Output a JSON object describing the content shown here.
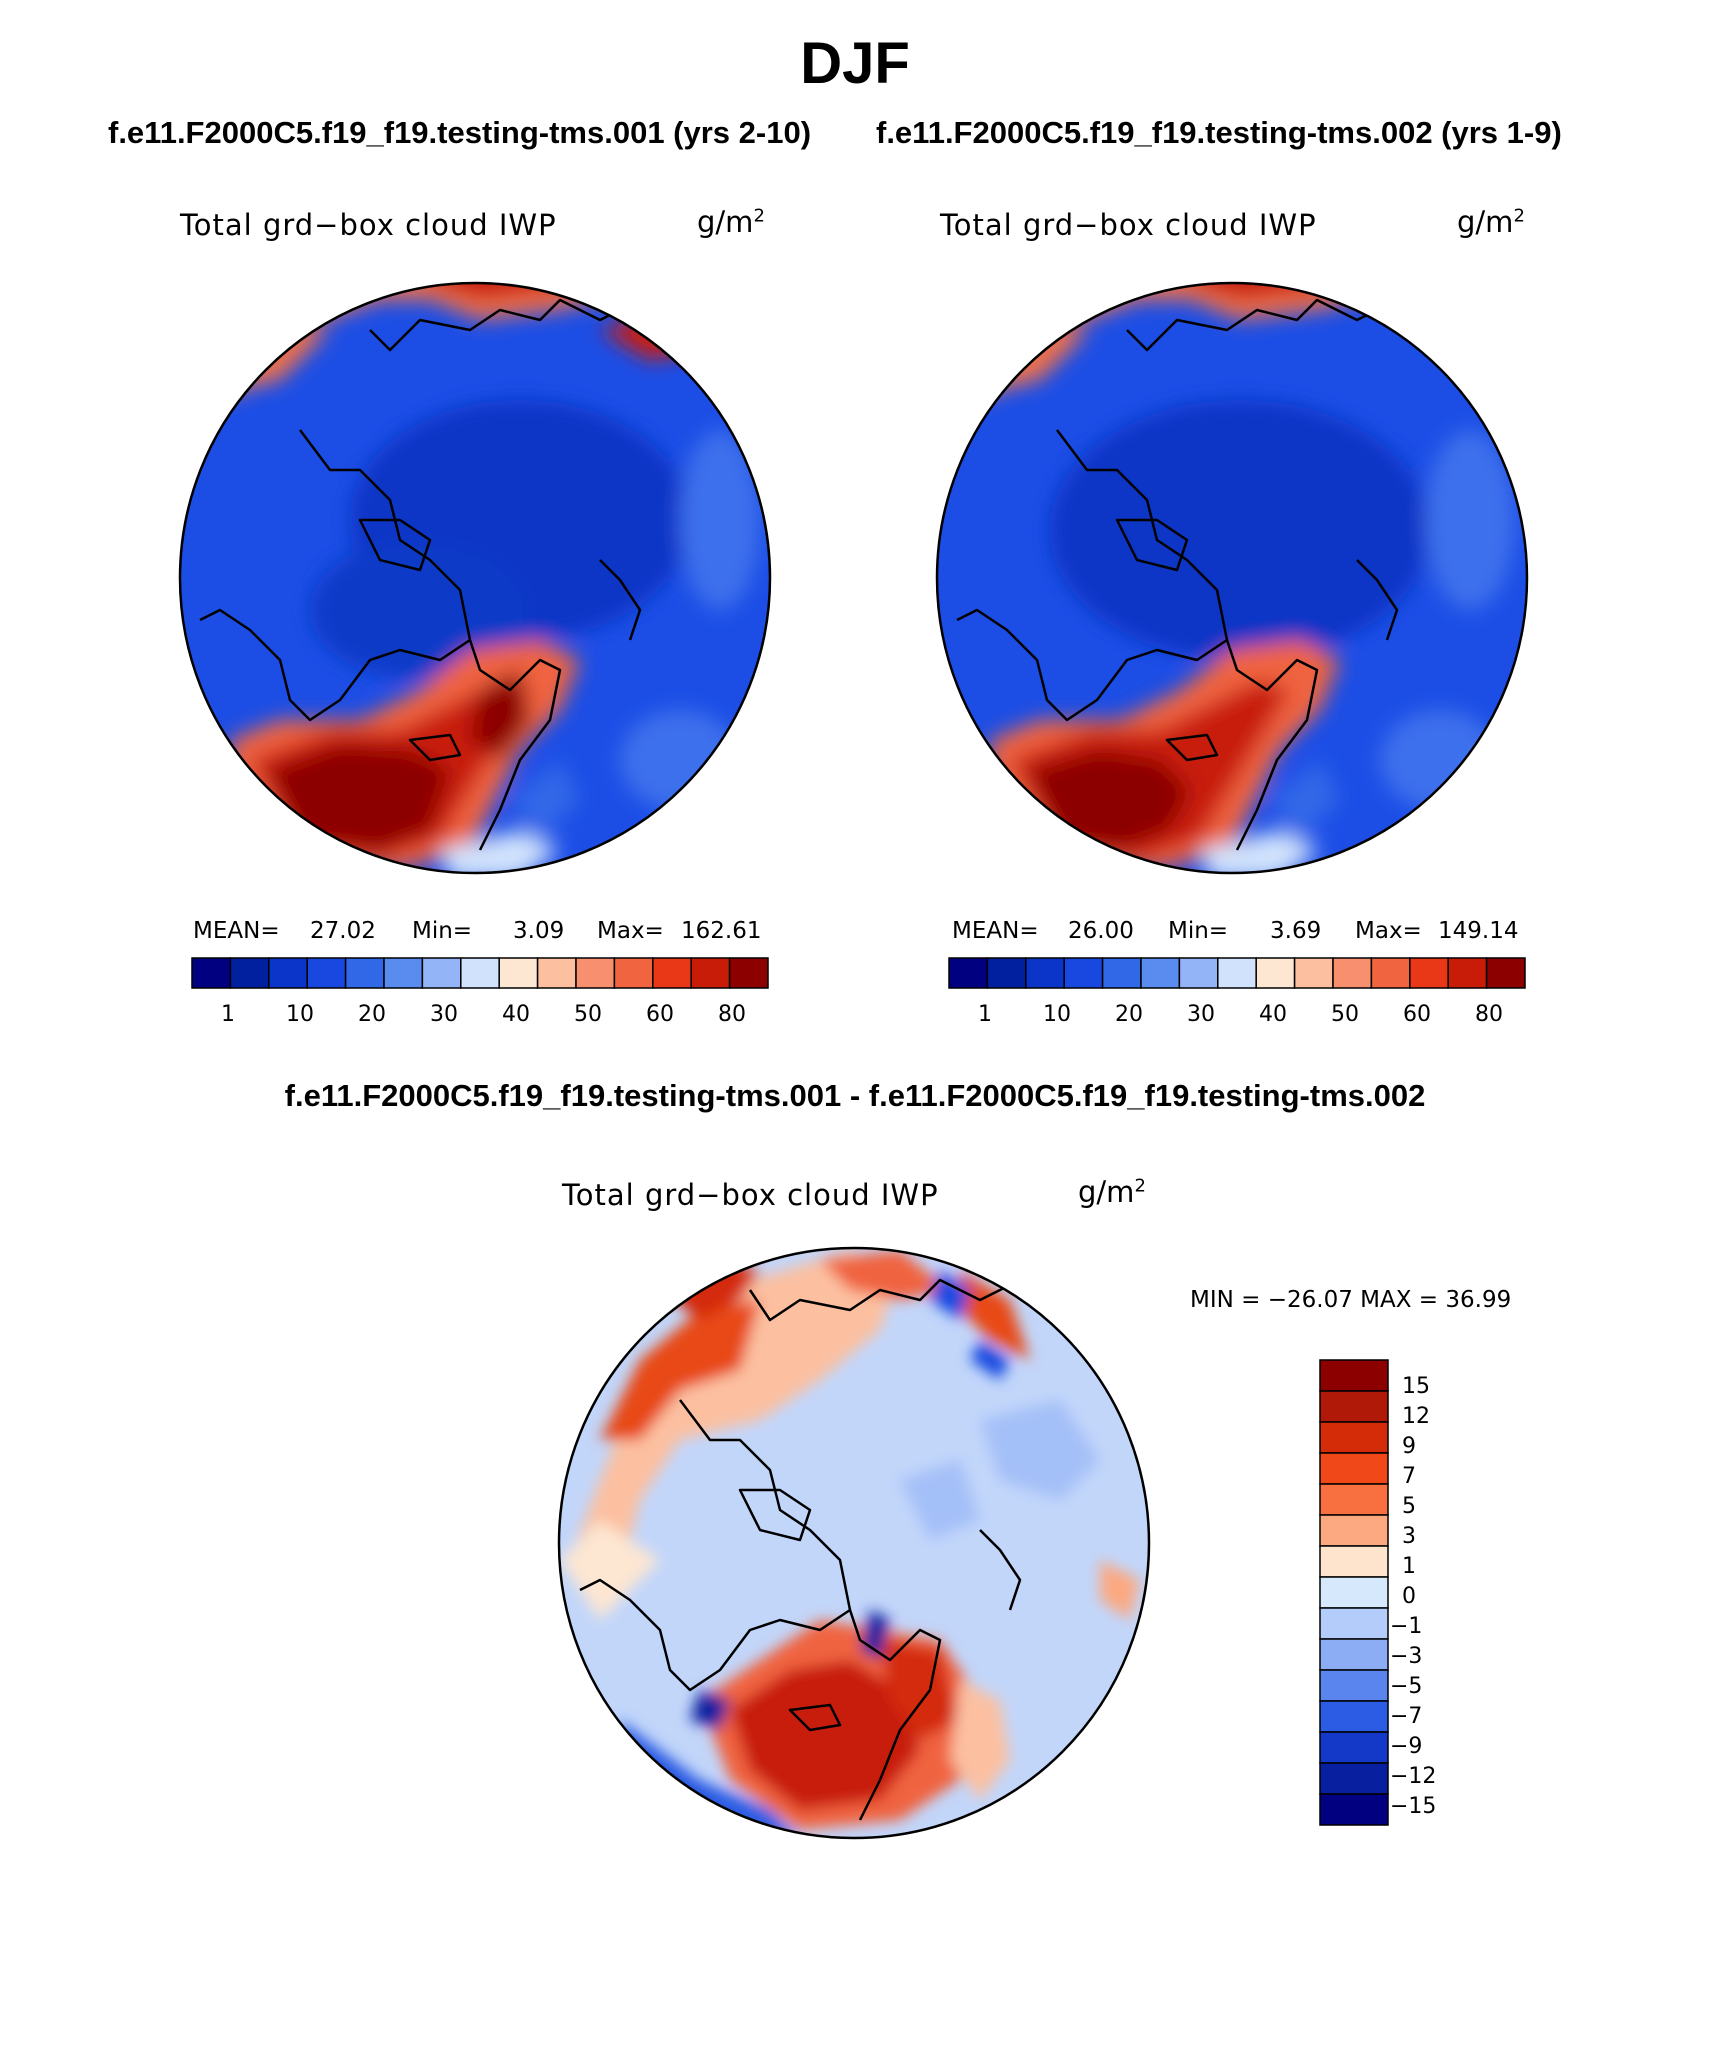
{
  "header": {
    "season": "DJF",
    "case1_title": "f.e11.F2000C5.f19_f19.testing-tms.001 (yrs 2-10)",
    "case2_title": "f.e11.F2000C5.f19_f19.testing-tms.002 (yrs 1-9)",
    "diff_title": "f.e11.F2000C5.f19_f19.testing-tms.001 - f.e11.F2000C5.f19_f19.testing-tms.002"
  },
  "panels": {
    "p1": {
      "variable": "Total grd−box cloud IWP",
      "units_base": "g/m",
      "units_exp": "2",
      "mean_label": "MEAN=",
      "mean": "27.02",
      "min_label": "Min=",
      "min": "3.09",
      "max_label": "Max=",
      "max": "162.61"
    },
    "p2": {
      "variable": "Total grd−box cloud IWP",
      "units_base": "g/m",
      "units_exp": "2",
      "mean_label": "MEAN=",
      "mean": "26.00",
      "min_label": "Min=",
      "min": "3.69",
      "max_label": "Max=",
      "max": "149.14"
    },
    "diff": {
      "variable": "Total grd−box cloud IWP",
      "units_base": "g/m",
      "units_exp": "2",
      "minmax": "MIN = −26.07  MAX =   36.99"
    }
  },
  "colorbars": {
    "abs_ticks": [
      "1",
      "10",
      "20",
      "30",
      "40",
      "50",
      "60",
      "80"
    ],
    "abs_colors": [
      "#000080",
      "#0020a0",
      "#0a35c8",
      "#1848e0",
      "#3068e8",
      "#5a8cf0",
      "#94b4f8",
      "#d0e2fc",
      "#fde6d2",
      "#fcc0a0",
      "#f89070",
      "#f06440",
      "#e83818",
      "#c81c08",
      "#8c0000"
    ],
    "diff_ticks": [
      "15",
      "12",
      "9",
      "7",
      "5",
      "3",
      "1",
      "0",
      "−1",
      "−3",
      "−5",
      "−7",
      "−9",
      "−12",
      "−15"
    ],
    "diff_colors": [
      "#8c0000",
      "#b01808",
      "#d42c08",
      "#f04818",
      "#f87040",
      "#fca880",
      "#fee4cc",
      "#d6e8fc",
      "#b4ccfa",
      "#8cacf4",
      "#5a84ee",
      "#2c5ce4",
      "#1438c8",
      "#0820a0",
      "#000080"
    ]
  }
}
